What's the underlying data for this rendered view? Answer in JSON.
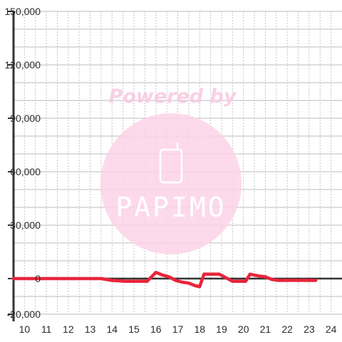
{
  "chart_data": {
    "type": "line",
    "title": "",
    "xlabel": "",
    "ylabel": "",
    "xlim": [
      9.5,
      24.5
    ],
    "ylim": [
      -20000,
      150000
    ],
    "x_ticks": [
      10,
      11,
      12,
      13,
      14,
      15,
      16,
      17,
      18,
      19,
      20,
      21,
      22,
      23,
      24
    ],
    "y_ticks": [
      -20000,
      0,
      30000,
      60000,
      90000,
      120000,
      150000
    ],
    "y_tick_labels": [
      "-20,000",
      "0",
      "30,000",
      "60,000",
      "90,000",
      "120,000",
      "150,000"
    ],
    "grid": true,
    "legend": "none",
    "series": [
      {
        "color": "#e8253a",
        "points": [
          [
            9.5,
            0
          ],
          [
            13.5,
            0
          ],
          [
            14.0,
            -1000
          ],
          [
            14.6,
            -1500
          ],
          [
            15.2,
            -1500
          ],
          [
            15.6,
            -1500
          ],
          [
            16.0,
            3500
          ],
          [
            16.3,
            2000
          ],
          [
            16.6,
            1000
          ],
          [
            16.9,
            -1000
          ],
          [
            17.2,
            -2000
          ],
          [
            17.5,
            -2500
          ],
          [
            17.8,
            -4000
          ],
          [
            18.0,
            -4500
          ],
          [
            18.2,
            2500
          ],
          [
            18.5,
            2500
          ],
          [
            18.9,
            2500
          ],
          [
            19.2,
            500
          ],
          [
            19.5,
            -1500
          ],
          [
            19.8,
            -1500
          ],
          [
            20.1,
            -1500
          ],
          [
            20.3,
            2500
          ],
          [
            20.7,
            1500
          ],
          [
            21.0,
            1000
          ],
          [
            21.3,
            -500
          ],
          [
            21.6,
            -1000
          ],
          [
            22.0,
            -1000
          ],
          [
            22.5,
            -1000
          ],
          [
            23.3,
            -1000
          ]
        ]
      }
    ]
  },
  "watermark": {
    "text": "Powered by",
    "logo_text": "PAPIMO",
    "color": "#f9c8e0"
  }
}
